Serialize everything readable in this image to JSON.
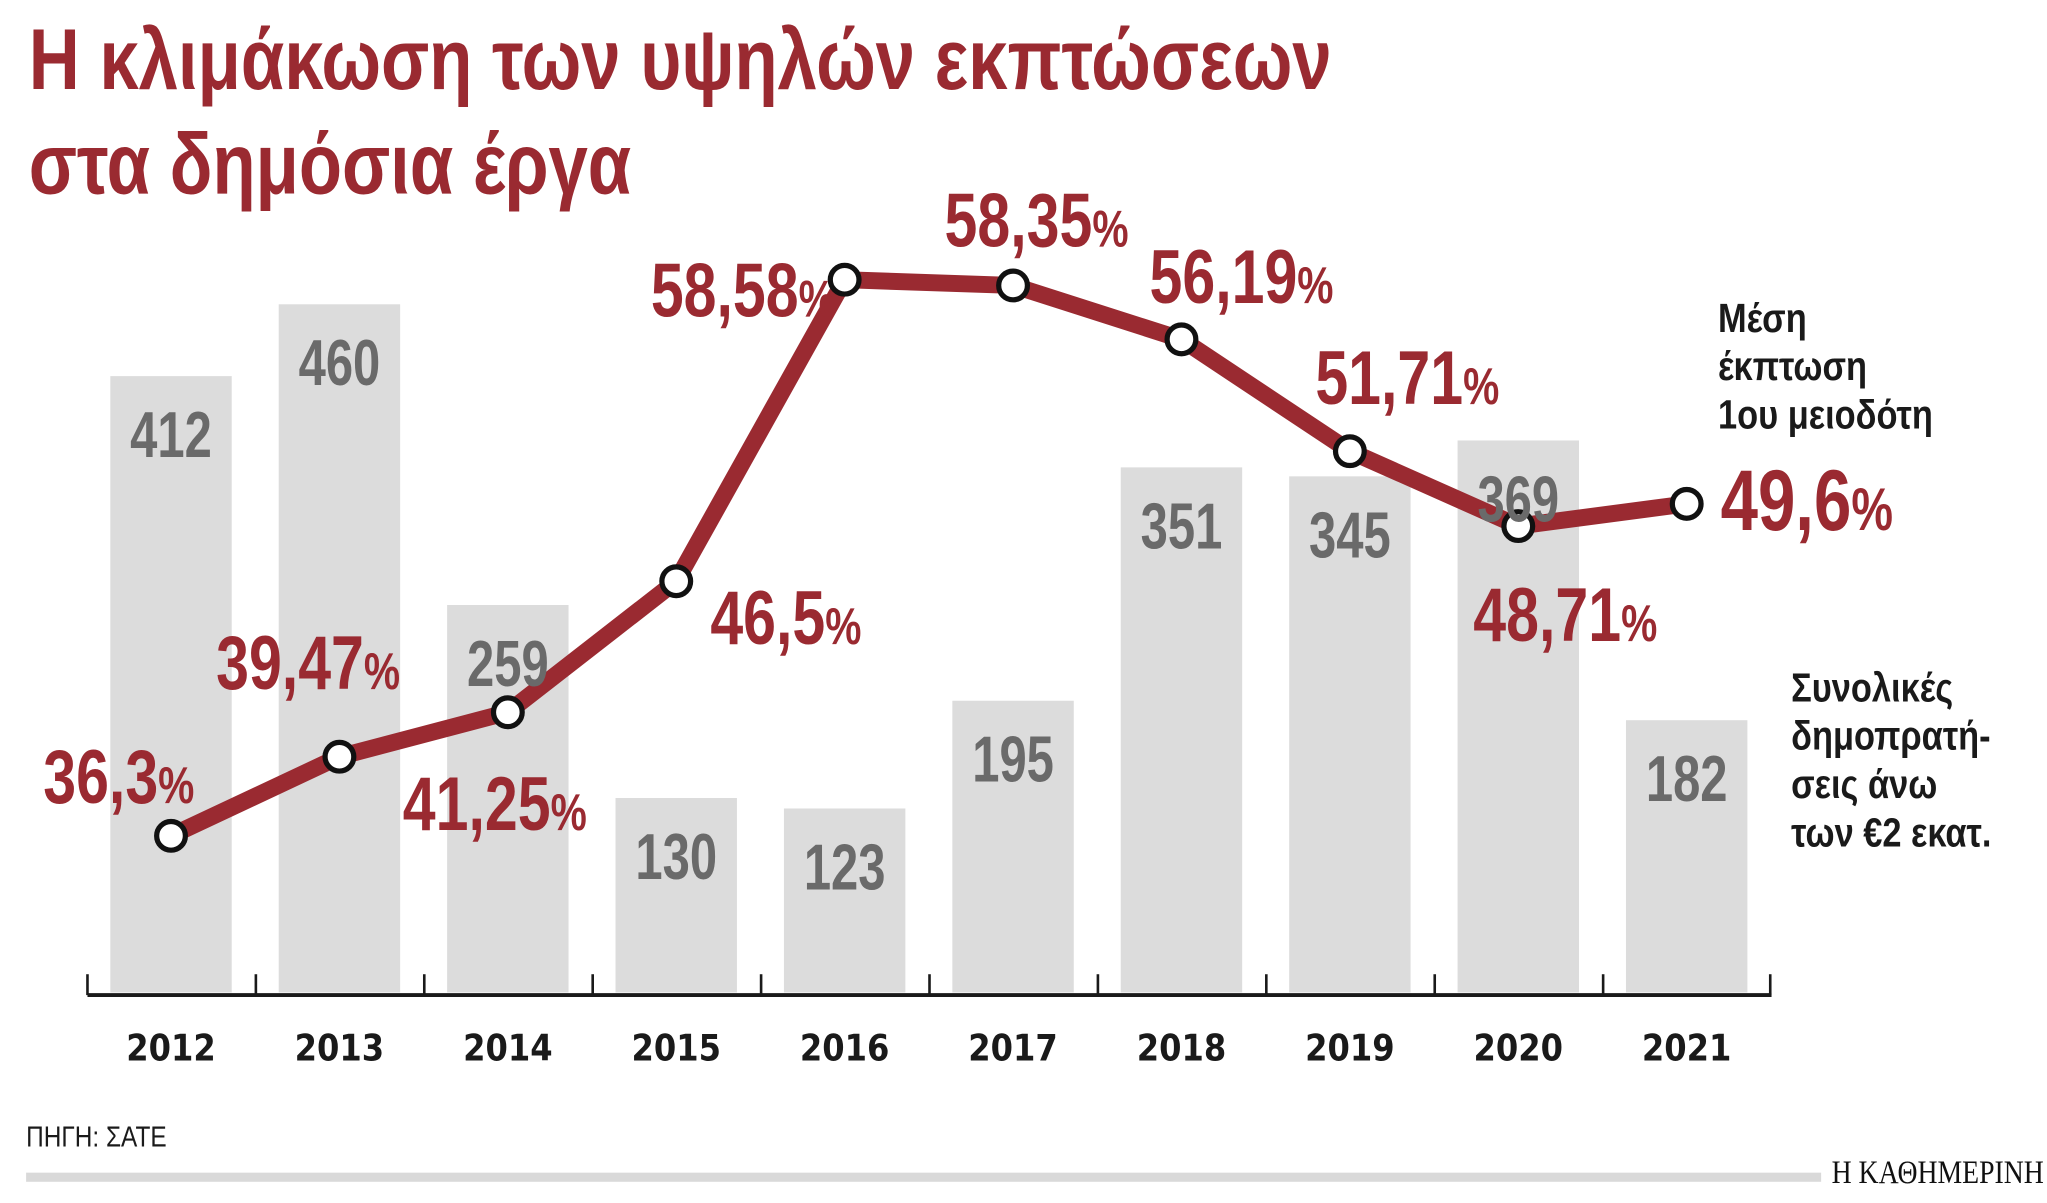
{
  "chart_data": {
    "type": "bar+line",
    "title_lines": [
      "Η κλιμάκωση των υψηλών εκπτώσεων",
      "στα δημόσια έργα"
    ],
    "categories": [
      "2012",
      "2013",
      "2014",
      "2015",
      "2016",
      "2017",
      "2018",
      "2019",
      "2020",
      "2021"
    ],
    "bars": {
      "name_lines": [
        "Συνολικές",
        "δημοπρατή-",
        "σεις άνω",
        "των €2 εκατ."
      ],
      "values": [
        412,
        460,
        259,
        130,
        123,
        195,
        351,
        345,
        369,
        182
      ],
      "labels": [
        "412",
        "460",
        "259",
        "130",
        "123",
        "195",
        "351",
        "345",
        "369",
        "182"
      ],
      "color": "#dcdcdc"
    },
    "line": {
      "name_lines": [
        "Μέση",
        "έκπτωση",
        "1ου μειοδότη"
      ],
      "values": [
        36.3,
        39.47,
        41.25,
        46.5,
        58.58,
        58.35,
        56.19,
        51.71,
        48.71,
        49.6
      ],
      "labels": [
        "36,3",
        "39,47",
        "41,25",
        "46,5",
        "58,58",
        "58,35",
        "56,19",
        "51,71",
        "48,71",
        "49,6"
      ],
      "unit": "%",
      "color": "#9a2a31"
    },
    "grid": false
  },
  "footer": {
    "source": "ΠΗΓΗ: ΣΑΤΕ",
    "brand": "Η ΚΑΘΗΜΕΡΙΝΗ"
  }
}
